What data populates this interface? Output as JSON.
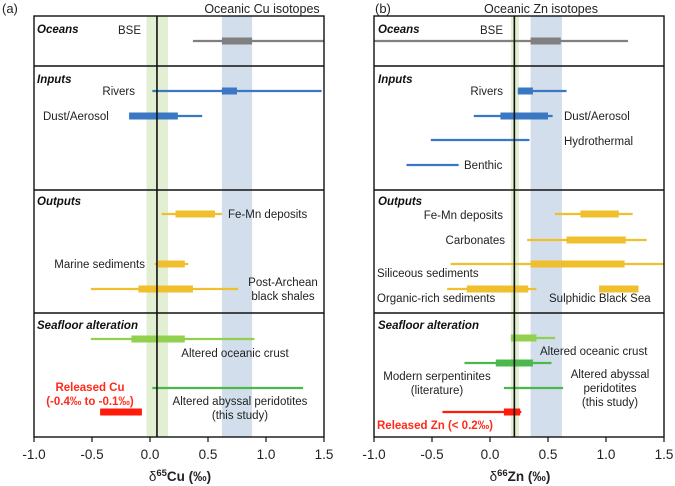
{
  "chart_data": [
    {
      "type": "range-bar",
      "panel_label": "(a)",
      "title": "Oceanic Cu isotopes",
      "xlabel_prefix": "δ",
      "xlabel_sup": "65",
      "xlabel_rest": "Cu (‰)",
      "xlim": [
        -1.0,
        1.5
      ],
      "xticks": [
        "-1.0",
        "-0.5",
        "0.0",
        "0.5",
        "1.0",
        "1.5"
      ],
      "xtick_values": [
        -1.0,
        -0.5,
        0.0,
        0.5,
        1.0,
        1.5
      ],
      "reference_line": 0.06,
      "green_band": [
        -0.03,
        0.155
      ],
      "blue_band": [
        0.62,
        0.88
      ],
      "sections": [
        "Oceans",
        "Inputs",
        "Outputs",
        "Seafloor alteration"
      ],
      "series": [
        {
          "name": "BSE",
          "section": "Oceans",
          "color": "gray",
          "whisker": [
            0.37,
            1.5
          ],
          "box": [
            0.62,
            0.88
          ]
        },
        {
          "name": "Rivers",
          "section": "Inputs",
          "color": "blue",
          "whisker": [
            0.02,
            1.48
          ],
          "box": [
            0.62,
            0.75
          ]
        },
        {
          "name": "Dust/Aerosol",
          "section": "Inputs",
          "color": "blue",
          "whisker": [
            -0.18,
            0.45
          ],
          "box": [
            -0.18,
            0.24
          ]
        },
        {
          "name": "Fe-Mn deposits",
          "section": "Outputs",
          "color": "yellow",
          "whisker": [
            0.1,
            0.62
          ],
          "box": [
            0.22,
            0.56
          ]
        },
        {
          "name": "Marine sediments",
          "section": "Outputs",
          "color": "yellow",
          "whisker": [
            0.04,
            0.33
          ],
          "box": [
            0.07,
            0.3
          ]
        },
        {
          "name": "Post-Archean black shales",
          "section": "Outputs",
          "color": "yellow",
          "whisker": [
            -0.51,
            0.76
          ],
          "box": [
            -0.1,
            0.37
          ]
        },
        {
          "name": "Altered oceanic crust",
          "section": "Seafloor alteration",
          "color": "lightgreen",
          "whisker": [
            -0.51,
            0.9
          ],
          "box": [
            -0.16,
            0.3
          ]
        },
        {
          "name": "Altered abyssal peridotites (this study)",
          "section": "Seafloor alteration",
          "color": "green",
          "whisker": [
            0.02,
            1.32
          ],
          "box": null
        },
        {
          "name": "Released Cu",
          "section": "Seafloor alteration",
          "color": "red",
          "whisker": null,
          "box": [
            -0.43,
            -0.07
          ]
        }
      ],
      "labels": {
        "bse": "BSE",
        "rivers": "Rivers",
        "dust": "Dust/Aerosol",
        "femn": "Fe-Mn deposits",
        "marine": "Marine sediments",
        "pa1": "Post-Archean",
        "pa2": "black shales",
        "aoc": "Altered oceanic crust",
        "aap1": "Altered abyssal peridotites",
        "aap2": "(this study)",
        "rel1": "Released Cu",
        "rel2": "(-0.4‰ to -0.1‰)"
      }
    },
    {
      "type": "range-bar",
      "panel_label": "(b)",
      "title": "Oceanic Zn isotopes",
      "xlabel_prefix": "δ",
      "xlabel_sup": "66",
      "xlabel_rest": "Zn (‰)",
      "xlim": [
        -1.0,
        1.5
      ],
      "xticks": [
        "-1.0",
        "-0.5",
        "0.0",
        "0.5",
        "1.0",
        "1.5"
      ],
      "xtick_values": [
        -1.0,
        -0.5,
        0.0,
        0.5,
        1.0,
        1.5
      ],
      "reference_line": 0.21,
      "green_band": [
        0.18,
        0.25
      ],
      "blue_band": [
        0.35,
        0.62
      ],
      "sections": [
        "Oceans",
        "Inputs",
        "Outputs",
        "Seafloor alteration"
      ],
      "series": [
        {
          "name": "BSE",
          "section": "Oceans",
          "color": "gray",
          "whisker": [
            -1.0,
            1.19
          ],
          "box": [
            0.35,
            0.61
          ]
        },
        {
          "name": "Rivers",
          "section": "Inputs",
          "color": "blue",
          "whisker": [
            0.24,
            0.66
          ],
          "box": [
            0.24,
            0.37
          ]
        },
        {
          "name": "Dust/Aerosol",
          "section": "Inputs",
          "color": "blue",
          "whisker": [
            -0.14,
            0.54
          ],
          "box": [
            0.09,
            0.5
          ]
        },
        {
          "name": "Hydrothermal",
          "section": "Inputs",
          "color": "blue",
          "whisker": [
            -0.51,
            0.34
          ],
          "box": null
        },
        {
          "name": "Benthic",
          "section": "Inputs",
          "color": "blue",
          "whisker": [
            -0.72,
            -0.27
          ],
          "box": null
        },
        {
          "name": "Fe-Mn deposits",
          "section": "Outputs",
          "color": "yellow",
          "whisker": [
            0.56,
            1.23
          ],
          "box": [
            0.78,
            1.11
          ]
        },
        {
          "name": "Carbonates",
          "section": "Outputs",
          "color": "yellow",
          "whisker": [
            0.32,
            1.35
          ],
          "box": [
            0.66,
            1.17
          ]
        },
        {
          "name": "Siliceous sediments",
          "section": "Outputs",
          "color": "yellow",
          "whisker": [
            -0.34,
            1.5
          ],
          "box": [
            0.35,
            1.16
          ]
        },
        {
          "name": "Organic-rich sediments",
          "section": "Outputs",
          "color": "yellow",
          "whisker": [
            -0.37,
            0.4
          ],
          "box": [
            -0.2,
            0.33
          ]
        },
        {
          "name": "Sulphidic Black Sea",
          "section": "Outputs",
          "color": "yellow",
          "whisker": null,
          "box": [
            0.94,
            1.28
          ]
        },
        {
          "name": "Altered oceanic crust",
          "section": "Seafloor alteration",
          "color": "lightgreen",
          "whisker": [
            0.18,
            0.56
          ],
          "box": [
            0.18,
            0.4
          ]
        },
        {
          "name": "Modern serpentinites (literature)",
          "section": "Seafloor alteration",
          "color": "green",
          "whisker": [
            -0.22,
            0.53
          ],
          "box": [
            0.05,
            0.37
          ]
        },
        {
          "name": "Altered abyssal peridotites (this study)",
          "section": "Seafloor alteration",
          "color": "green",
          "whisker": [
            0.12,
            0.63
          ],
          "box": null
        },
        {
          "name": "Released Zn",
          "section": "Seafloor alteration",
          "color": "red",
          "whisker": [
            -0.41,
            0.27
          ],
          "box": [
            0.12,
            0.26
          ]
        }
      ],
      "labels": {
        "bse": "BSE",
        "rivers": "Rivers",
        "dust": "Dust/Aerosol",
        "hydro": "Hydrothermal",
        "benthic": "Benthic",
        "femn": "Fe-Mn deposits",
        "carb": "Carbonates",
        "sil": "Siliceous sediments",
        "org": "Organic-rich sediments",
        "sulph": "Sulphidic Black Sea",
        "aoc": "Altered oceanic crust",
        "ms1": "Modern serpentinites",
        "ms2": "(literature)",
        "aap1": "Altered abyssal",
        "aap2": "peridotites",
        "aap3": "(this study)",
        "rel": "Released Zn (< 0.2‰)"
      }
    }
  ],
  "colors": {
    "gray": "#808080",
    "blue": "#3a78c3",
    "yellow": "#f0bf2e",
    "lightgreen": "#92d050",
    "green": "#4cb84c",
    "red": "#ff1a0a",
    "green_band": "#e2efd3",
    "blue_band": "#d2deec",
    "frame": "#111111"
  }
}
